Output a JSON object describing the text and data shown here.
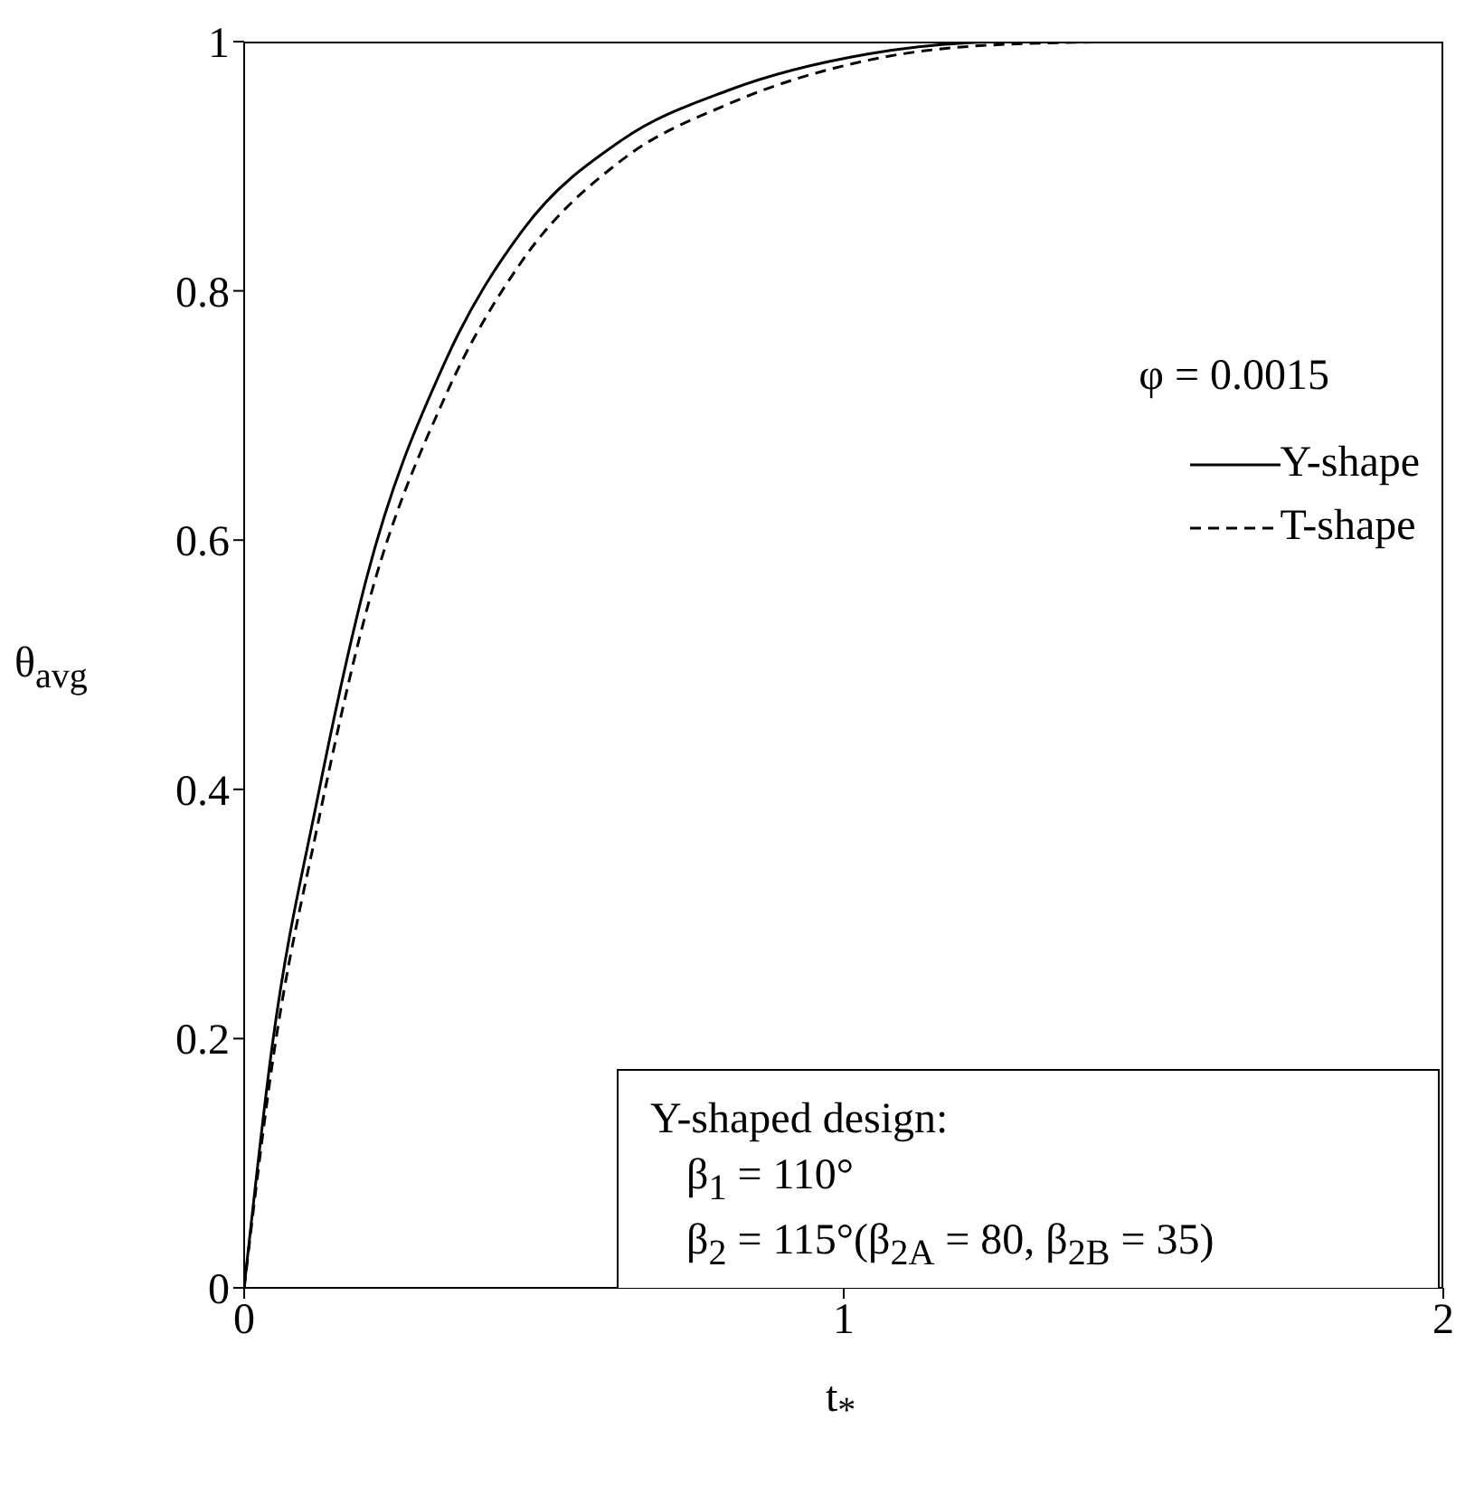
{
  "chart_data": {
    "type": "line",
    "xlabel": "t$_{*}$",
    "ylabel": "θ$_{avg}$",
    "x": [
      0,
      0.047,
      0.122,
      0.205,
      0.335,
      0.465,
      0.63,
      0.808,
      1.04,
      1.28,
      1.49
    ],
    "series": [
      {
        "name": "Y-shape",
        "color": "#000000",
        "line_style": "solid",
        "values": [
          0,
          0.195,
          0.392,
          0.571,
          0.743,
          0.849,
          0.921,
          0.961,
          0.99,
          1.0,
          1.0
        ]
      },
      {
        "name": "T-shape",
        "color": "#000000",
        "line_style": "dashed",
        "values": [
          0,
          0.18,
          0.37,
          0.545,
          0.715,
          0.825,
          0.905,
          0.95,
          0.985,
          0.998,
          1.0
        ]
      }
    ],
    "xlim": [
      0,
      2
    ],
    "xticks": [
      0,
      1,
      2
    ],
    "ylim": [
      0,
      1
    ],
    "yticks": [
      0,
      0.2,
      0.4,
      0.6,
      0.8,
      1
    ],
    "legend": "right",
    "marker": "none",
    "annotations": [
      "φ = 0.0015",
      "Y-shaped design:",
      "β$_{1}$ = 110°",
      "β$_{2}$ = 115°(β$_{2A}$ = 80, β$_{2B}$ = 35)"
    ]
  }
}
